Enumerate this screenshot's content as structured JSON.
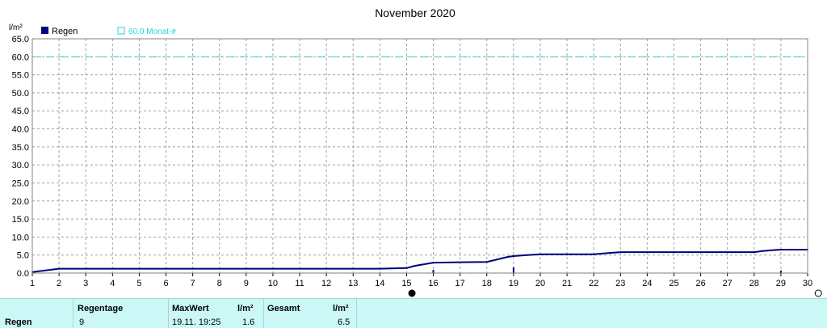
{
  "chart_data": {
    "type": "line",
    "title": "November 2020",
    "ylabel": "l/m²",
    "ylim": [
      0,
      65
    ],
    "yticks": [
      "0.0",
      "5.0",
      "10.0",
      "15.0",
      "20.0",
      "25.0",
      "30.0",
      "35.0",
      "40.0",
      "45.0",
      "50.0",
      "55.0",
      "60.0",
      "65.0"
    ],
    "xlim": [
      1,
      30
    ],
    "xticks": [
      "1",
      "2",
      "3",
      "4",
      "5",
      "6",
      "7",
      "8",
      "9",
      "10",
      "11",
      "12",
      "13",
      "14",
      "15",
      "16",
      "17",
      "18",
      "19",
      "20",
      "21",
      "22",
      "23",
      "24",
      "25",
      "26",
      "27",
      "28",
      "29",
      "30"
    ],
    "grid": true,
    "legend_position": "top-left",
    "series": [
      {
        "name": "Regen",
        "color": "#000080",
        "x": [
          1,
          2,
          3,
          4,
          5,
          6,
          7,
          8,
          9,
          10,
          11,
          12,
          13,
          14,
          15,
          15.3,
          16,
          17,
          18,
          18.3,
          18.8,
          19,
          19.5,
          20,
          21,
          22,
          22.3,
          23,
          24,
          25,
          26,
          27,
          28,
          28.3,
          28.8,
          29,
          30
        ],
        "y": [
          0.3,
          1.2,
          1.2,
          1.2,
          1.2,
          1.2,
          1.2,
          1.2,
          1.2,
          1.2,
          1.2,
          1.2,
          1.2,
          1.2,
          1.4,
          2.0,
          2.9,
          3.0,
          3.1,
          3.6,
          4.5,
          4.7,
          5.0,
          5.2,
          5.2,
          5.2,
          5.4,
          5.8,
          5.8,
          5.8,
          5.8,
          5.8,
          5.8,
          6.1,
          6.4,
          6.5,
          6.5
        ]
      }
    ],
    "reference_line": {
      "name": "60.0 Monat-#",
      "value": 60,
      "color": "#27d6d6",
      "style": "dashed"
    },
    "daily_markers": [
      {
        "x": 16,
        "value": 0.9
      },
      {
        "x": 19,
        "value": 1.6
      },
      {
        "x": 29,
        "value": 0.7
      }
    ],
    "moon_phases": [
      {
        "x": 15.2,
        "phase": "new-moon"
      },
      {
        "x": 30.4,
        "phase": "full-moon"
      }
    ]
  },
  "legend": {
    "regen_label": "Regen",
    "monat_label": "60.0 Monat-#"
  },
  "summary": {
    "row_label": "Regen",
    "regentage_header": "Regentage",
    "regentage_value": "9",
    "maxwert_header": "MaxWert",
    "maxwert_unit": "l/m²",
    "maxwert_time": "19.11.  19:25",
    "maxwert_value": "1.6",
    "gesamt_header": "Gesamt",
    "gesamt_unit": "l/m²",
    "gesamt_value": "6.5"
  }
}
